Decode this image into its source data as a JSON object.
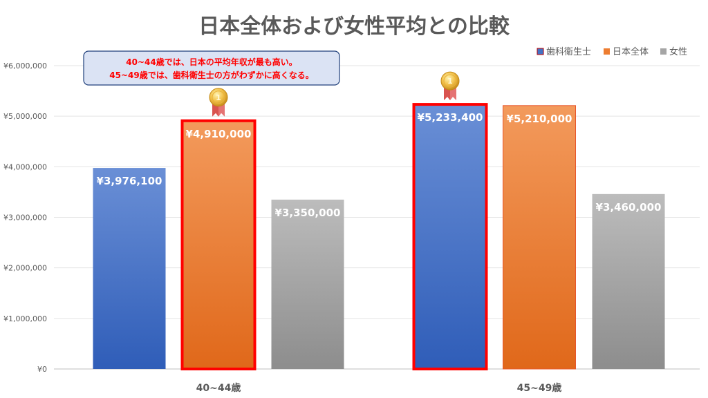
{
  "chart_data": {
    "type": "bar",
    "title": "日本全体および女性平均との比較",
    "categories": [
      "40~44歳",
      "45~49歳"
    ],
    "series": [
      {
        "name": "歯科衛生士",
        "values": [
          3976100,
          5233400
        ],
        "labels": [
          "¥3,976,100",
          "¥5,233,400"
        ],
        "color": "#4472c4",
        "highlight": [
          false,
          true
        ]
      },
      {
        "name": "日本全体",
        "values": [
          4910000,
          5210000
        ],
        "labels": [
          "¥4,910,000",
          "¥5,210,000"
        ],
        "color": "#ed7d31",
        "highlight": [
          true,
          false
        ]
      },
      {
        "name": "女性",
        "values": [
          3350000,
          3460000
        ],
        "labels": [
          "¥3,350,000",
          "¥3,460,000"
        ],
        "color": "#a5a5a5",
        "highlight": [
          false,
          false
        ]
      }
    ],
    "ylim": [
      0,
      6000000
    ],
    "yticks": [
      0,
      1000000,
      2000000,
      3000000,
      4000000,
      5000000,
      6000000
    ],
    "ytick_labels": [
      "¥0",
      "¥1,000,000",
      "¥2,000,000",
      "¥3,000,000",
      "¥4,000,000",
      "¥5,000,000",
      "¥6,000,000"
    ],
    "xlabel": "",
    "ylabel": "",
    "grid": true,
    "legend_position": "top-right",
    "annotation": {
      "lines": [
        "40~44歳では、日本の平均年収が最も高い。",
        "45~49歳では、歯科衛生士の方がわずかに高くなる。"
      ],
      "color": "#ff0000"
    },
    "medals": [
      {
        "category": "40~44歳",
        "series": "日本全体",
        "label": "1"
      },
      {
        "category": "45~49歳",
        "series": "歯科衛生士",
        "label": "1"
      }
    ]
  }
}
